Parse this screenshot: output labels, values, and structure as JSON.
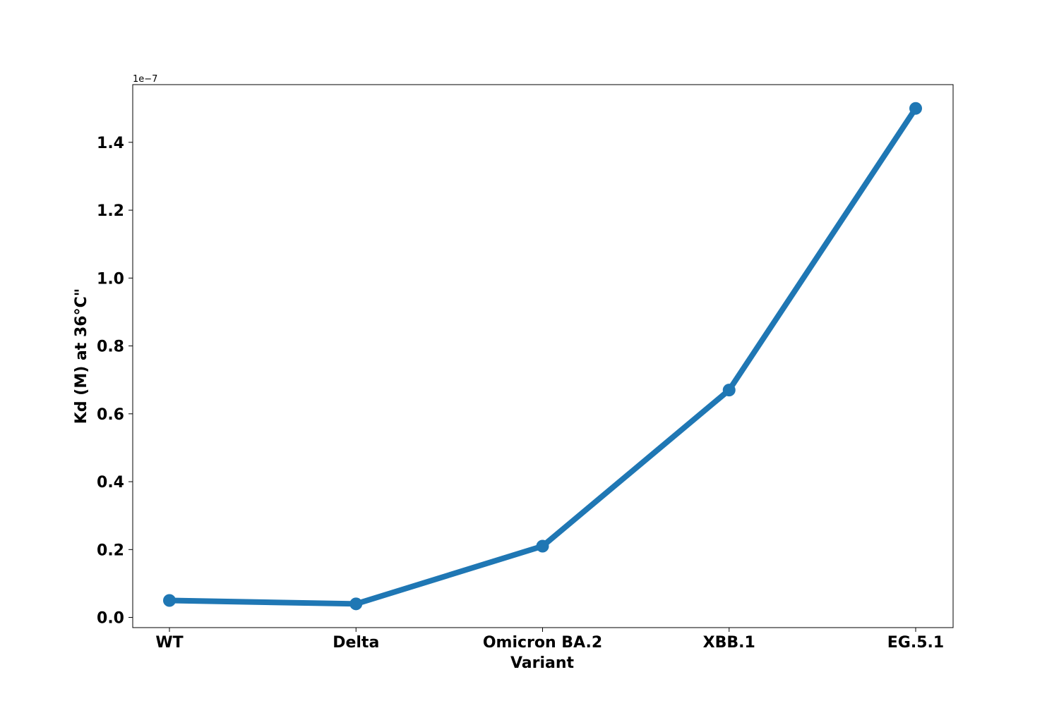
{
  "chart_data": {
    "type": "line",
    "categories": [
      "WT",
      "Delta",
      "Omicron BA.2",
      "XBB.1",
      "EG.5.1"
    ],
    "series": [
      {
        "values": [
          5e-09,
          4e-09,
          2.1e-08,
          6.7e-08,
          1.5e-07
        ],
        "color": "#1f77b4"
      }
    ],
    "xlabel": "Variant",
    "ylabel": "Kd (M) at 36°C\"",
    "ylim": [
      -3e-09,
      1.57e-07
    ],
    "yticks": [
      0.0,
      2e-08,
      4e-08,
      6e-08,
      8e-08,
      1e-07,
      1.2e-07,
      1.4e-07
    ],
    "ytick_labels": [
      "0.0",
      "0.2",
      "0.4",
      "0.6",
      "0.8",
      "1.0",
      "1.2",
      "1.4"
    ],
    "y_offset_text": "1e−7",
    "grid": false,
    "legend": "none"
  }
}
